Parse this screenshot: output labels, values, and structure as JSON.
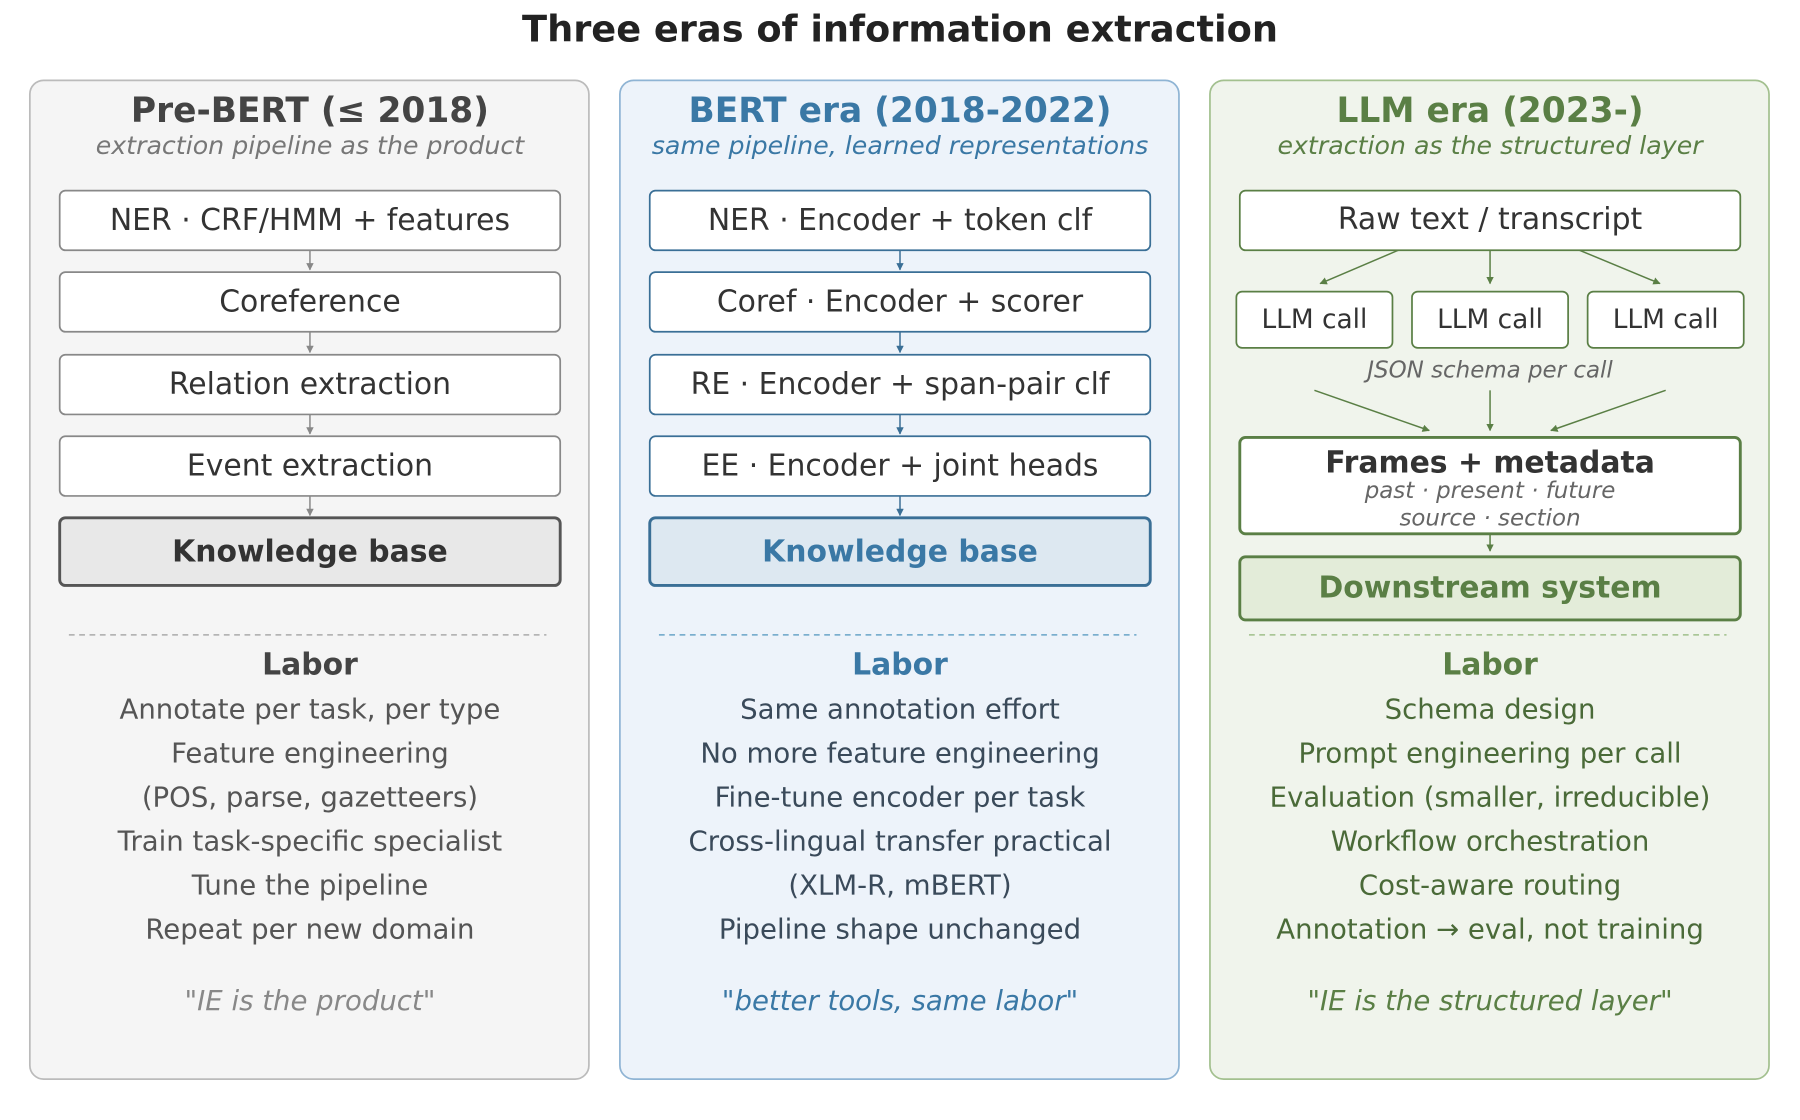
{
  "title": "Three eras of information extraction",
  "columns": [
    {
      "title": "Pre-BERT (≤ 2018)",
      "subtitle": "extraction pipeline as the product",
      "pipeline": [
        "NER · CRF/HMM + features",
        "Coreference",
        "Relation extraction",
        "Event extraction",
        "Knowledge base"
      ],
      "labor": {
        "heading": "Labor",
        "items": [
          "Annotate per task, per type",
          "Feature engineering",
          "(POS, parse, gazetteers)",
          "Train task-specific specialist",
          "Tune the pipeline",
          "Repeat per new domain"
        ]
      },
      "quote": "\"IE is the product\""
    },
    {
      "title": "BERT era (2018-2022)",
      "subtitle": "same pipeline, learned representations",
      "pipeline": [
        "NER · Encoder + token clf",
        "Coref · Encoder + scorer",
        "RE · Encoder + span-pair clf",
        "EE · Encoder + joint heads",
        "Knowledge base"
      ],
      "labor": {
        "heading": "Labor",
        "items": [
          "Same annotation effort",
          "No more feature engineering",
          "Fine-tune encoder per task",
          "Cross-lingual transfer practical",
          "(XLM-R, mBERT)",
          "Pipeline shape unchanged"
        ]
      },
      "quote": "\"better tools, same labor\""
    },
    {
      "title": "LLM era (2023-)",
      "subtitle": "extraction as the structured layer",
      "source": "Raw text / transcript",
      "calls": [
        "LLM call",
        "LLM call",
        "LLM call"
      ],
      "call_note": "JSON schema per call",
      "frames": {
        "title": "Frames + metadata",
        "lines": [
          "past · present · future",
          "source · section"
        ]
      },
      "output": "Downstream system",
      "labor": {
        "heading": "Labor",
        "items": [
          "Schema design",
          "Prompt engineering per call",
          "Evaluation (smaller, irreducible)",
          "Workflow orchestration",
          "Cost-aware routing",
          "Annotation → eval, not training"
        ]
      },
      "quote": "\"IE is the structured layer\""
    }
  ]
}
